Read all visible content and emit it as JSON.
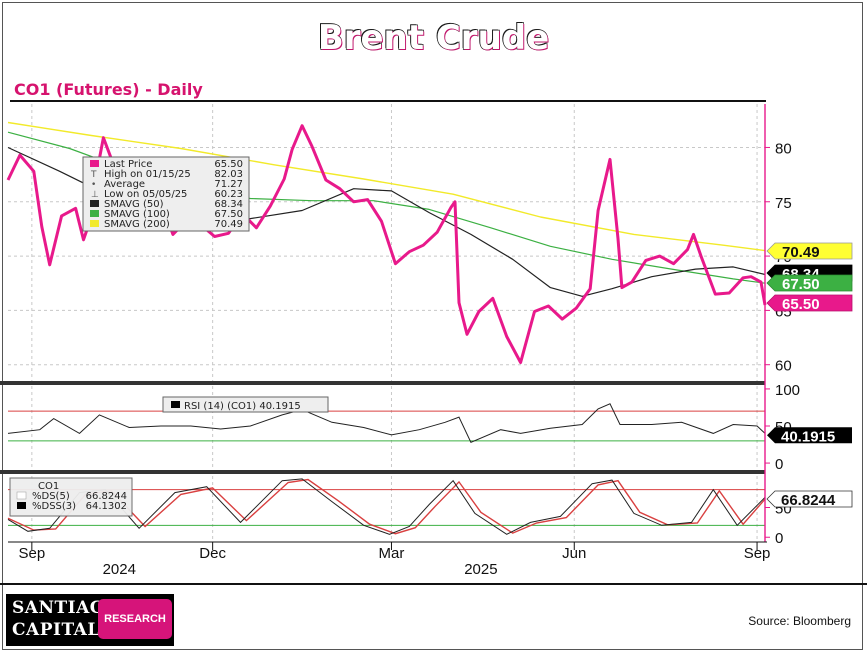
{
  "header": {
    "title": "Brent Crude",
    "subtitle": "CO1 (Futures) - Daily"
  },
  "footer": {
    "logo_line1": "SANTIAGO",
    "logo_line2": "CAPITAL",
    "logo_badge": "RESEARCH",
    "source": "Source: Bloomberg"
  },
  "colors": {
    "price": "#e8198b",
    "sma50": "#222222",
    "sma100": "#3cb043",
    "sma200": "#f2ea2a",
    "stoch_upper": "#d94040",
    "stoch_lower": "#3cb043",
    "label_pink": "#e8198b",
    "label_yellow": "#ffff33",
    "label_black": "#000000",
    "label_green": "#3cb043"
  },
  "chart_data": [
    {
      "type": "line",
      "panel": "price",
      "y_ticks": [
        "80",
        "75",
        "70",
        "65",
        "60"
      ],
      "ylim": [
        58.5,
        84
      ],
      "x_ticks": [
        "Sep",
        "Dec",
        "Mar",
        "Jun",
        "Sep"
      ],
      "x_years": [
        "2024",
        "2025"
      ],
      "x_tick_dates": [
        "2024-09-01",
        "2024-12-01",
        "2025-03-01",
        "2025-06-01",
        "2025-09-01"
      ],
      "x_year_dates": [
        "2024-10-15",
        "2025-04-15"
      ],
      "date_range": [
        "2024-08-20",
        "2025-09-05"
      ],
      "legend": {
        "placement": "top-left",
        "rows": [
          {
            "label": "Last Price",
            "value": "65.50",
            "marker": "price"
          },
          {
            "label": "High on 01/15/25",
            "value": "82.03",
            "marker": "high"
          },
          {
            "label": "Average",
            "value": "71.27",
            "marker": "average"
          },
          {
            "label": "Low on 05/05/25",
            "value": "60.23",
            "marker": "low"
          },
          {
            "label": "SMAVG (50)",
            "value": "68.34",
            "marker": "sma50"
          },
          {
            "label": "SMAVG (100)",
            "value": "67.50",
            "marker": "sma100"
          },
          {
            "label": "SMAVG (200)",
            "value": "70.49",
            "marker": "sma200"
          }
        ]
      },
      "series": [
        {
          "key": "price",
          "name": "Last Price",
          "x": [
            "2024-08-20",
            "2024-08-26",
            "2024-09-02",
            "2024-09-06",
            "2024-09-10",
            "2024-09-16",
            "2024-09-23",
            "2024-09-27",
            "2024-10-01",
            "2024-10-04",
            "2024-10-07",
            "2024-10-14",
            "2024-10-21",
            "2024-10-28",
            "2024-11-04",
            "2024-11-11",
            "2024-11-18",
            "2024-11-25",
            "2024-12-02",
            "2024-12-09",
            "2024-12-16",
            "2024-12-23",
            "2024-12-30",
            "2025-01-06",
            "2025-01-10",
            "2025-01-15",
            "2025-01-20",
            "2025-01-27",
            "2025-02-03",
            "2025-02-10",
            "2025-02-17",
            "2025-02-24",
            "2025-03-03",
            "2025-03-10",
            "2025-03-17",
            "2025-03-24",
            "2025-03-31",
            "2025-04-02",
            "2025-04-04",
            "2025-04-08",
            "2025-04-14",
            "2025-04-21",
            "2025-04-28",
            "2025-05-05",
            "2025-05-12",
            "2025-05-19",
            "2025-05-26",
            "2025-06-02",
            "2025-06-09",
            "2025-06-13",
            "2025-06-19",
            "2025-06-23",
            "2025-06-25",
            "2025-06-30",
            "2025-07-07",
            "2025-07-14",
            "2025-07-21",
            "2025-07-28",
            "2025-07-31",
            "2025-08-04",
            "2025-08-11",
            "2025-08-18",
            "2025-08-25",
            "2025-08-29",
            "2025-09-03",
            "2025-09-05"
          ],
          "values": [
            77.0,
            79.3,
            77.8,
            72.7,
            69.2,
            73.7,
            74.4,
            71.5,
            73.6,
            78.0,
            80.9,
            77.5,
            74.2,
            73.1,
            75.6,
            72.0,
            73.3,
            72.9,
            71.8,
            72.1,
            73.9,
            72.6,
            74.6,
            77.1,
            79.8,
            82.0,
            80.1,
            77.0,
            76.2,
            75.0,
            75.2,
            73.2,
            69.3,
            70.4,
            71.0,
            72.2,
            74.5,
            75.0,
            65.7,
            62.8,
            64.9,
            66.1,
            62.6,
            60.2,
            64.9,
            65.4,
            64.2,
            65.2,
            67.0,
            74.2,
            78.9,
            71.6,
            67.1,
            67.6,
            69.6,
            70.0,
            69.3,
            70.6,
            72.0,
            69.9,
            66.5,
            66.6,
            68.0,
            68.1,
            67.6,
            65.5
          ]
        },
        {
          "key": "sma50",
          "name": "SMAVG (50)",
          "x": [
            "2024-08-20",
            "2024-09-15",
            "2024-10-15",
            "2024-11-15",
            "2024-12-15",
            "2025-01-15",
            "2025-02-10",
            "2025-03-01",
            "2025-03-20",
            "2025-04-10",
            "2025-05-01",
            "2025-05-20",
            "2025-06-05",
            "2025-06-20",
            "2025-07-10",
            "2025-08-01",
            "2025-08-20",
            "2025-09-05"
          ],
          "values": [
            80.0,
            77.8,
            75.1,
            73.8,
            73.3,
            74.2,
            76.2,
            76.0,
            74.0,
            72.0,
            69.7,
            67.1,
            66.3,
            67.0,
            68.1,
            68.8,
            69.0,
            68.3
          ]
        },
        {
          "key": "sma100",
          "name": "SMAVG (100)",
          "x": [
            "2024-08-20",
            "2024-09-20",
            "2024-10-20",
            "2024-11-20",
            "2024-12-20",
            "2025-01-20",
            "2025-02-20",
            "2025-03-20",
            "2025-04-20",
            "2025-05-20",
            "2025-06-20",
            "2025-07-20",
            "2025-08-20",
            "2025-09-05"
          ],
          "values": [
            81.4,
            79.9,
            77.9,
            76.2,
            75.3,
            75.1,
            75.1,
            74.3,
            72.6,
            70.9,
            69.7,
            68.8,
            67.9,
            67.5
          ]
        },
        {
          "key": "sma200",
          "name": "SMAVG (200)",
          "x": [
            "2024-08-20",
            "2024-10-01",
            "2024-11-15",
            "2025-01-01",
            "2025-02-15",
            "2025-04-01",
            "2025-05-15",
            "2025-07-01",
            "2025-08-15",
            "2025-09-05"
          ],
          "values": [
            82.3,
            81.1,
            79.9,
            78.4,
            77.1,
            75.7,
            73.6,
            72.0,
            71.0,
            70.5
          ]
        }
      ],
      "right_labels": [
        {
          "text": "70.49",
          "value": 70.49,
          "style": "yellow"
        },
        {
          "text": "68.34",
          "value": 68.34,
          "style": "black"
        },
        {
          "text": "67.50",
          "value": 67.5,
          "style": "green"
        },
        {
          "text": "65.50",
          "value": 65.5,
          "style": "pink"
        }
      ]
    },
    {
      "type": "line",
      "panel": "rsi",
      "y_ticks": [
        "100",
        "50",
        "0"
      ],
      "ylim": [
        -8,
        108
      ],
      "overbought": 70,
      "oversold": 30,
      "legend_text": "RSI (14) (CO1) 40.1915",
      "series": [
        {
          "name": "RSI (14) (CO1)",
          "x": [
            "2024-08-20",
            "2024-09-05",
            "2024-09-12",
            "2024-09-25",
            "2024-10-05",
            "2024-10-20",
            "2024-11-05",
            "2024-11-20",
            "2024-12-05",
            "2024-12-20",
            "2025-01-05",
            "2025-01-15",
            "2025-01-30",
            "2025-02-15",
            "2025-03-01",
            "2025-03-15",
            "2025-03-28",
            "2025-04-04",
            "2025-04-10",
            "2025-04-25",
            "2025-05-05",
            "2025-05-20",
            "2025-06-05",
            "2025-06-13",
            "2025-06-19",
            "2025-06-24",
            "2025-07-10",
            "2025-07-25",
            "2025-08-10",
            "2025-08-20",
            "2025-09-01",
            "2025-09-05"
          ],
          "values": [
            40,
            45,
            60,
            40,
            65,
            48,
            50,
            50,
            46,
            50,
            65,
            72,
            55,
            48,
            38,
            45,
            55,
            62,
            28,
            45,
            40,
            47,
            52,
            73,
            80,
            52,
            52,
            55,
            40,
            52,
            50,
            40
          ]
        }
      ],
      "right_label": {
        "text": "40.1915",
        "value": 40.1915
      }
    },
    {
      "type": "line",
      "panel": "stochastic",
      "y_ticks": [
        "50",
        "0"
      ],
      "ylim": [
        -8,
        108
      ],
      "upper": 80,
      "lower": 20,
      "legend_rows": [
        {
          "label": "CO1",
          "value": ""
        },
        {
          "label": "%DS(5)",
          "value": "66.8244"
        },
        {
          "label": "%DSS(3)",
          "value": "64.1302"
        }
      ],
      "series": [
        {
          "name": "%DS(5)",
          "x": [
            "2024-08-20",
            "2024-08-30",
            "2024-09-10",
            "2024-09-25",
            "2024-10-08",
            "2024-10-25",
            "2024-11-12",
            "2024-11-28",
            "2024-12-15",
            "2025-01-05",
            "2025-01-15",
            "2025-01-30",
            "2025-02-15",
            "2025-02-28",
            "2025-03-10",
            "2025-03-20",
            "2025-04-01",
            "2025-04-12",
            "2025-04-28",
            "2025-05-10",
            "2025-05-25",
            "2025-06-10",
            "2025-06-20",
            "2025-07-01",
            "2025-07-15",
            "2025-07-30",
            "2025-08-10",
            "2025-08-22",
            "2025-09-05"
          ],
          "values": [
            30,
            10,
            15,
            75,
            80,
            15,
            75,
            85,
            25,
            95,
            98,
            60,
            20,
            5,
            18,
            55,
            95,
            40,
            5,
            25,
            35,
            90,
            96,
            40,
            20,
            25,
            80,
            20,
            67
          ]
        },
        {
          "name": "%DSS(3)",
          "x": [
            "2024-08-20",
            "2024-09-02",
            "2024-09-13",
            "2024-09-28",
            "2024-10-11",
            "2024-10-28",
            "2024-11-15",
            "2024-12-01",
            "2024-12-18",
            "2025-01-08",
            "2025-01-18",
            "2025-02-02",
            "2025-02-18",
            "2025-03-03",
            "2025-03-13",
            "2025-03-23",
            "2025-04-04",
            "2025-04-15",
            "2025-05-01",
            "2025-05-13",
            "2025-05-28",
            "2025-06-13",
            "2025-06-23",
            "2025-07-04",
            "2025-07-18",
            "2025-08-02",
            "2025-08-13",
            "2025-08-25",
            "2025-09-05"
          ],
          "values": [
            32,
            12,
            14,
            72,
            78,
            18,
            72,
            83,
            28,
            92,
            97,
            62,
            22,
            6,
            16,
            52,
            93,
            42,
            7,
            24,
            33,
            88,
            95,
            42,
            21,
            24,
            78,
            22,
            64
          ]
        }
      ],
      "right_label": {
        "text": "66.8244",
        "value": 66.8244
      }
    }
  ]
}
